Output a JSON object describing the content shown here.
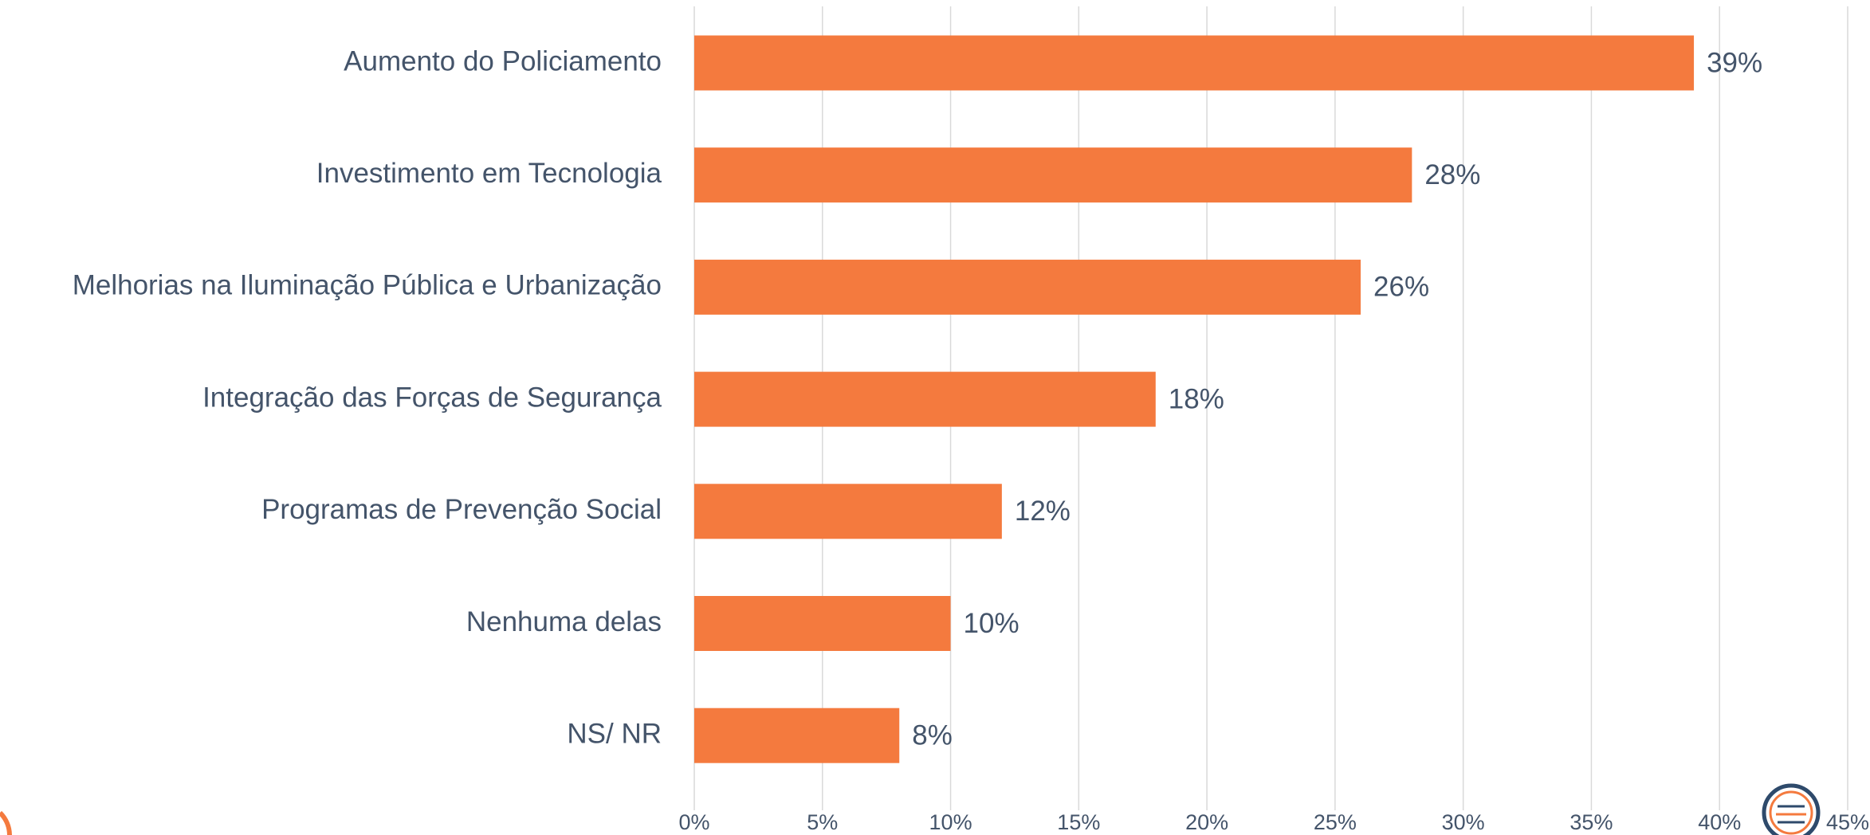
{
  "chart_data": {
    "type": "bar",
    "orientation": "horizontal",
    "categories": [
      "Aumento do Policiamento",
      "Investimento em Tecnologia",
      "Melhorias na Iluminação Pública e Urbanização",
      "Integração das Forças de Segurança",
      "Programas de Prevenção Social",
      "Nenhuma delas",
      "NS/ NR"
    ],
    "values": [
      39,
      28,
      26,
      18,
      12,
      10,
      8
    ],
    "value_labels": [
      "39%",
      "28%",
      "26%",
      "18%",
      "12%",
      "10%",
      "8%"
    ],
    "color": "#f47a3e",
    "xlim": [
      0,
      45
    ],
    "xticks": [
      {
        "value": 0,
        "label": "0%"
      },
      {
        "value": 5,
        "label": "5%"
      },
      {
        "value": 10,
        "label": "10%"
      },
      {
        "value": 15,
        "label": "15%"
      },
      {
        "value": 20,
        "label": "20%"
      },
      {
        "value": 25,
        "label": "25%"
      },
      {
        "value": 30,
        "label": "30%"
      },
      {
        "value": 35,
        "label": "35%"
      },
      {
        "value": 40,
        "label": "40%"
      },
      {
        "value": 45,
        "label": "45%"
      }
    ],
    "grid": true
  }
}
